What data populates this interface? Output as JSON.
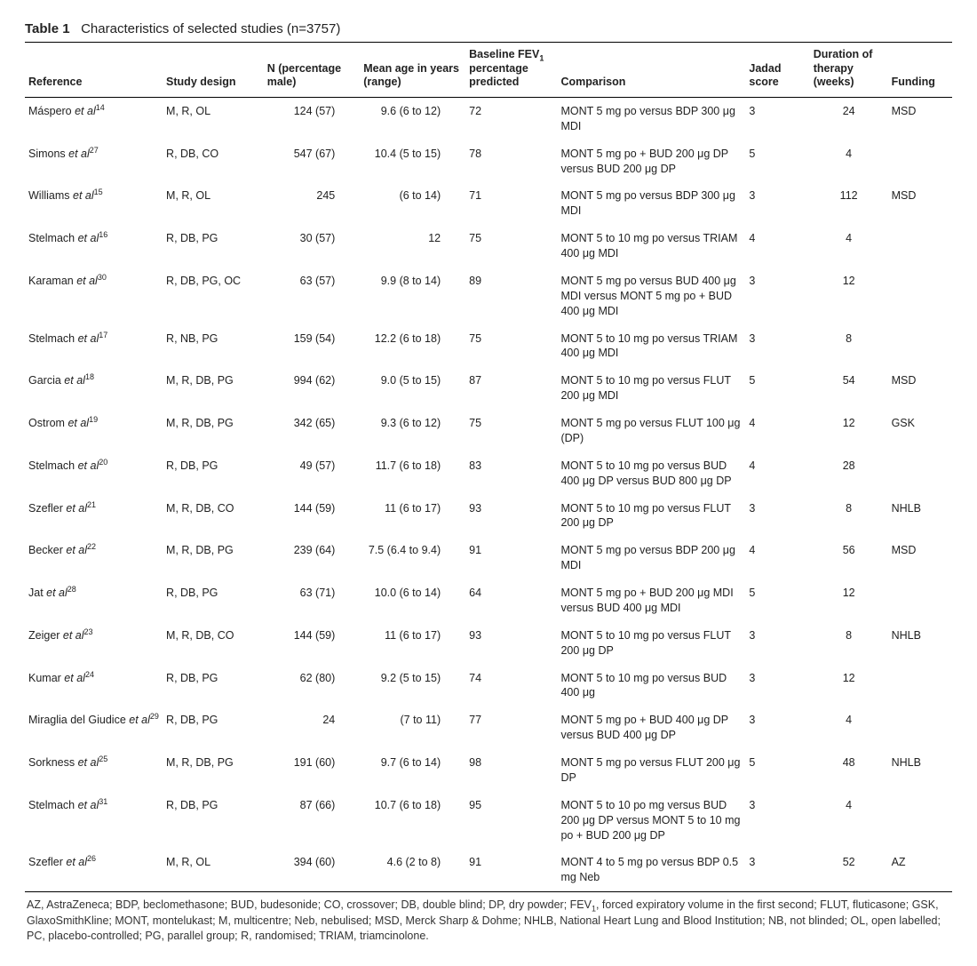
{
  "title_label": "Table 1",
  "title_text": "Characteristics of selected studies (n=3757)",
  "columns": [
    {
      "key": "ref",
      "label": "Reference"
    },
    {
      "key": "design",
      "label": "Study design"
    },
    {
      "key": "n",
      "label": "N (percentage male)"
    },
    {
      "key": "age",
      "label": "Mean age in years (range)"
    },
    {
      "key": "fev",
      "label_html": "Baseline FEV<sub>1</sub> percentage predicted"
    },
    {
      "key": "comp",
      "label": "Comparison"
    },
    {
      "key": "jadad",
      "label": "Jadad score"
    },
    {
      "key": "dur",
      "label": "Duration of therapy (weeks)"
    },
    {
      "key": "fund",
      "label": "Funding"
    }
  ],
  "rows": [
    {
      "ref_html": "Máspero <span class=\"ital\">et al</span><sup>14</sup>",
      "design": "M, R, OL",
      "n": "124 (57)",
      "age": "9.6 (6 to 12)",
      "fev": "72",
      "comp_html": "MONT 5 mg po versus BDP 300 <span class=\"mu\"></span>g MDI",
      "jadad": "3",
      "dur": "24",
      "fund": "MSD"
    },
    {
      "ref_html": "Simons <span class=\"ital\">et al</span><sup>27</sup>",
      "design": "R, DB, CO",
      "n": "547 (67)",
      "age": "10.4 (5 to 15)",
      "fev": "78",
      "comp_html": "MONT 5 mg po + BUD 200 <span class=\"mu\"></span>g DP versus BUD 200 <span class=\"mu\"></span>g DP",
      "jadad": "5",
      "dur": "4",
      "fund": ""
    },
    {
      "ref_html": "Williams <span class=\"ital\">et al</span><sup>15</sup>",
      "design": "M, R, OL",
      "n": "245",
      "age": "(6 to 14)",
      "fev": "71",
      "comp_html": "MONT 5 mg po versus BDP 300 <span class=\"mu\"></span>g MDI",
      "jadad": "3",
      "dur": "112",
      "fund": "MSD"
    },
    {
      "ref_html": "Stelmach <span class=\"ital\">et al</span><sup>16</sup>",
      "design": "R, DB, PG",
      "n": "30 (57)",
      "age": "12",
      "fev": "75",
      "comp_html": "MONT 5 to 10 mg po versus TRIAM 400 <span class=\"mu\"></span>g MDI",
      "jadad": "4",
      "dur": "4",
      "fund": ""
    },
    {
      "ref_html": "Karaman <span class=\"ital\">et al</span><sup>30</sup>",
      "design": "R, DB, PG, OC",
      "n": "63 (57)",
      "age": "9.9 (8 to 14)",
      "fev": "89",
      "comp_html": "MONT 5 mg po versus BUD 400 <span class=\"mu\"></span>g MDI versus MONT 5 mg po + BUD 400 <span class=\"mu\"></span>g MDI",
      "jadad": "3",
      "dur": "12",
      "fund": ""
    },
    {
      "ref_html": "Stelmach <span class=\"ital\">et al</span><sup>17</sup>",
      "design": "R, NB, PG",
      "n": "159 (54)",
      "age": "12.2 (6 to 18)",
      "fev": "75",
      "comp_html": "MONT 5 to 10 mg po versus TRIAM 400 <span class=\"mu\"></span>g MDI",
      "jadad": "3",
      "dur": "8",
      "fund": ""
    },
    {
      "ref_html": "Garcia <span class=\"ital\">et al</span><sup>18</sup>",
      "design": "M, R, DB, PG",
      "n": "994 (62)",
      "age": "9.0 (5 to 15)",
      "fev": "87",
      "comp_html": "MONT 5 to 10 mg po versus FLUT 200 <span class=\"mu\"></span>g MDI",
      "jadad": "5",
      "dur": "54",
      "fund": "MSD"
    },
    {
      "ref_html": "Ostrom <span class=\"ital\">et al</span><sup>19</sup>",
      "design": "M, R, DB, PG",
      "n": "342 (65)",
      "age": "9.3 (6 to 12)",
      "fev": "75",
      "comp_html": "MONT 5 mg po versus FLUT 100 <span class=\"mu\"></span>g (DP)",
      "jadad": "4",
      "dur": "12",
      "fund": "GSK"
    },
    {
      "ref_html": "Stelmach <span class=\"ital\">et al</span><sup>20</sup>",
      "design": "R, DB, PG",
      "n": "49 (57)",
      "age": "11.7 (6 to 18)",
      "fev": "83",
      "comp_html": "MONT 5 to 10 mg po versus BUD 400 <span class=\"mu\"></span>g DP versus BUD 800 <span class=\"mu\"></span>g DP",
      "jadad": "4",
      "dur": "28",
      "fund": ""
    },
    {
      "ref_html": "Szefler <span class=\"ital\">et al</span><sup>21</sup>",
      "design": "M, R, DB, CO",
      "n": "144 (59)",
      "age": "11 (6 to 17)",
      "fev": "93",
      "comp_html": "MONT 5 to 10 mg po versus FLUT 200 <span class=\"mu\"></span>g DP",
      "jadad": "3",
      "dur": "8",
      "fund": "NHLB"
    },
    {
      "ref_html": "Becker <span class=\"ital\">et al</span><sup>22</sup>",
      "design": "M, R, DB, PG",
      "n": "239 (64)",
      "age": "7.5 (6.4 to 9.4)",
      "fev": "91",
      "comp_html": "MONT 5 mg po versus BDP 200 <span class=\"mu\"></span>g MDI",
      "jadad": "4",
      "dur": "56",
      "fund": "MSD"
    },
    {
      "ref_html": "Jat <span class=\"ital\">et al</span><sup>28</sup>",
      "design": "R, DB, PG",
      "n": "63 (71)",
      "age": "10.0 (6 to 14)",
      "fev": "64",
      "comp_html": "MONT 5 mg po + BUD 200 <span class=\"mu\"></span>g MDI versus BUD 400 <span class=\"mu\"></span>g MDI",
      "jadad": "5",
      "dur": "12",
      "fund": ""
    },
    {
      "ref_html": "Zeiger <span class=\"ital\">et al</span><sup>23</sup>",
      "design": "M, R, DB, CO",
      "n": "144 (59)",
      "age": "11 (6 to 17)",
      "fev": "93",
      "comp_html": "MONT 5 to 10 mg po versus FLUT 200 <span class=\"mu\"></span>g DP",
      "jadad": "3",
      "dur": "8",
      "fund": "NHLB"
    },
    {
      "ref_html": "Kumar <span class=\"ital\">et al</span><sup>24</sup>",
      "design": "R, DB, PG",
      "n": "62 (80)",
      "age": "9.2 (5 to 15)",
      "fev": "74",
      "comp_html": "MONT 5 to 10 mg po versus BUD 400 <span class=\"mu\"></span>g",
      "jadad": "3",
      "dur": "12",
      "fund": ""
    },
    {
      "ref_html": "Miraglia del Giudice <span class=\"ital\">et al</span><sup>29</sup>",
      "design": "R, DB, PG",
      "n": "24",
      "age": "(7 to 11)",
      "fev": "77",
      "comp_html": "MONT 5 mg po + BUD 400 <span class=\"mu\"></span>g DP versus BUD 400 <span class=\"mu\"></span>g DP",
      "jadad": "3",
      "dur": "4",
      "fund": ""
    },
    {
      "ref_html": "Sorkness <span class=\"ital\">et al</span><sup>25</sup>",
      "design": "M, R, DB, PG",
      "n": "191 (60)",
      "age": "9.7 (6 to 14)",
      "fev": "98",
      "comp_html": "MONT 5 mg po versus FLUT 200 <span class=\"mu\"></span>g DP",
      "jadad": "5",
      "dur": "48",
      "fund": "NHLB"
    },
    {
      "ref_html": "Stelmach <span class=\"ital\">et al</span><sup>31</sup>",
      "design": "R, DB, PG",
      "n": "87 (66)",
      "age": "10.7 (6 to 18)",
      "fev": "95",
      "comp_html": "MONT 5 to 10 po mg versus BUD 200 <span class=\"mu\"></span>g DP versus MONT 5 to 10 mg po + BUD 200 <span class=\"mu\"></span>g DP",
      "jadad": "3",
      "dur": "4",
      "fund": ""
    },
    {
      "ref_html": "Szefler <span class=\"ital\">et al</span><sup>26</sup>",
      "design": "M, R, OL",
      "n": "394 (60)",
      "age": "4.6 (2 to 8)",
      "fev": "91",
      "comp_html": "MONT 4 to 5 mg po versus BDP 0.5 mg Neb",
      "jadad": "3",
      "dur": "52",
      "fund": "AZ"
    }
  ],
  "footnote_html": "AZ, AstraZeneca; BDP, beclomethasone; BUD, budesonide; CO, crossover; DB, double blind; DP, dry powder; FEV<sub>1</sub>, forced expiratory volume in the first second; FLUT, fluticasone; GSK, GlaxoSmithKline; MONT, montelukast; M, multicentre; Neb, nebulised; MSD, Merck Sharp &amp; Dohme; NHLB, National Heart Lung and Blood Institution; NB, not blinded; OL, open labelled; PC, placebo-controlled; PG, parallel group; R, randomised; TRIAM, triamcinolone."
}
